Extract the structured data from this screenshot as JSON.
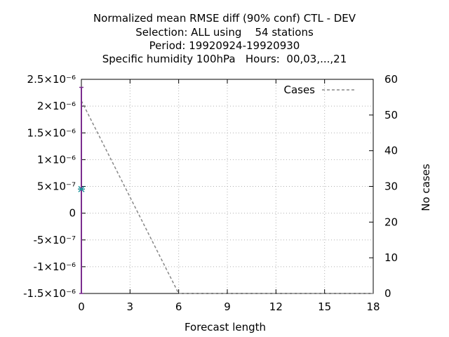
{
  "title_lines": [
    "Normalized mean RMSE diff (90% conf) CTL - DEV",
    "Selection: ALL using    54 stations",
    "Period: 19920924-19920930",
    "Specific humidity 100hPa   Hours:  00,03,...,21"
  ],
  "chart_data": {
    "type": "line",
    "xlabel": "Forecast length",
    "ylabel": "",
    "y2label": "No cases",
    "xlim": [
      0,
      18
    ],
    "ylim": [
      -1.5e-06,
      2.5e-06
    ],
    "y2lim": [
      0,
      60
    ],
    "grid": true,
    "legend_position": "top-right",
    "x_ticks": [
      0,
      3,
      6,
      9,
      12,
      15,
      18
    ],
    "x_tick_labels": [
      "0",
      "3",
      "6",
      "9",
      "12",
      "15",
      "18"
    ],
    "y_ticks": [
      2.5e-06,
      2e-06,
      1.5e-06,
      1e-06,
      5e-07,
      0,
      -5e-07,
      -1e-06,
      -1.5e-06
    ],
    "y_tick_labels": [
      "2.5×10⁻⁶",
      "2×10⁻⁶",
      "1.5×10⁻⁶",
      "1×10⁻⁶",
      "5×10⁻⁷",
      "0",
      "-5×10⁻⁷",
      "-1×10⁻⁶",
      "-1.5×10⁻⁶"
    ],
    "y2_ticks": [
      60,
      50,
      40,
      30,
      20,
      10,
      0
    ],
    "y2_tick_labels": [
      "60",
      "50",
      "40",
      "30",
      "20",
      "10",
      "0"
    ],
    "series": [
      {
        "name": "Cases",
        "axis": "y2",
        "style": "dashed",
        "color": "#888888",
        "x": [
          0,
          1,
          2,
          3,
          4,
          5,
          6,
          9,
          12,
          15,
          18
        ],
        "y": [
          54,
          45,
          36,
          27,
          18,
          9,
          0,
          0,
          0,
          0,
          0
        ]
      }
    ],
    "error_bar": {
      "x": 0,
      "center": 4.5e-07,
      "low": -1.5e-06,
      "high": 2.35e-06,
      "color": "#7b2d8e",
      "marker_color": "#1f8f9a"
    }
  }
}
